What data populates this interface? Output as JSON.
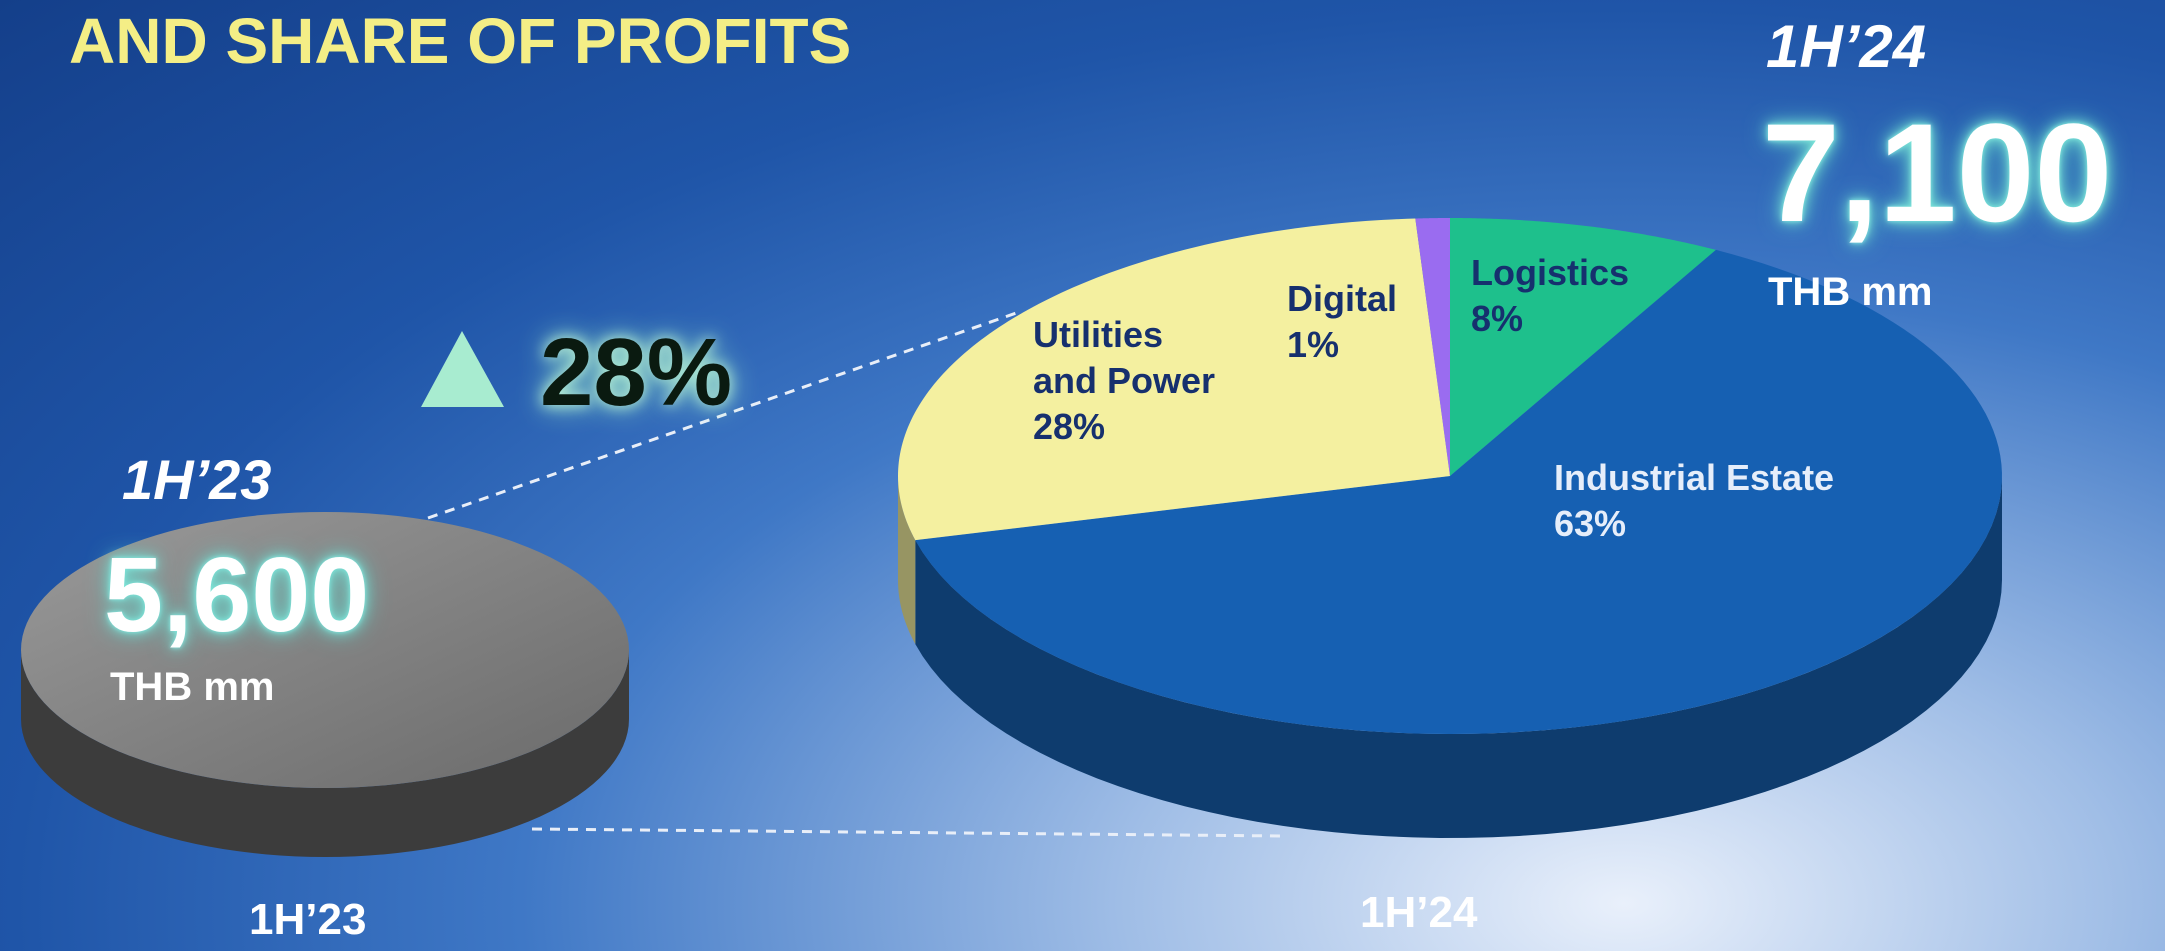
{
  "title": "AND SHARE OF PROFITS",
  "change": {
    "label": "28%"
  },
  "previous": {
    "period": "1H’23",
    "total": "5,600",
    "unit": "THB mm",
    "axis_label": "1H’23"
  },
  "current": {
    "period": "1H’24",
    "total": "7,100",
    "unit": "THB mm",
    "axis_label": "1H’24"
  },
  "chart_data": {
    "type": "pie",
    "categories": [
      "Logistics",
      "Industrial Estate",
      "Utilities and Power",
      "Digital"
    ],
    "values": [
      8,
      63,
      28,
      1
    ],
    "value_labels": [
      "8%",
      "63%",
      "28%",
      "1%"
    ],
    "colors": [
      "#1ec08c",
      "#1660b2",
      "#f4f0a0",
      "#9a6cf0"
    ]
  }
}
